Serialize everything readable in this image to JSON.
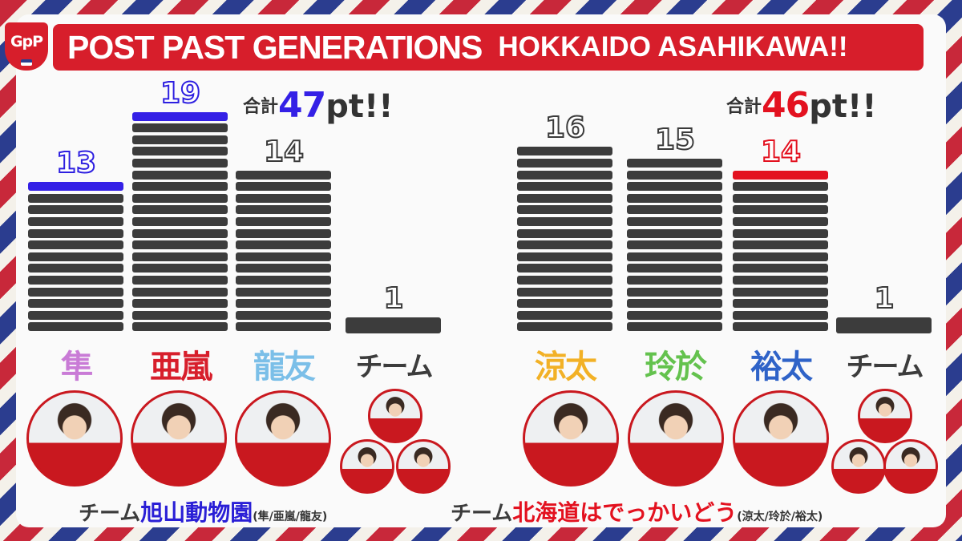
{
  "title": {
    "logo": "GpP",
    "main": "POST PAST GENERATIONS",
    "sub": "HOKKAIDO  ASAHIKAWA!!"
  },
  "colors": {
    "blue": "#3420e6",
    "red": "#e3111f",
    "dark": "#3c3c3c",
    "title_bg": "#d71e2b"
  },
  "totals": {
    "left": {
      "label": "合計",
      "value": "47",
      "unit": "pt!!"
    },
    "right": {
      "label": "合計",
      "value": "46",
      "unit": "pt!!"
    }
  },
  "chart_data": {
    "type": "bar",
    "categories": [
      "隼",
      "亜嵐",
      "龍友",
      "チーム",
      "涼太",
      "玲於",
      "裕太",
      "チーム"
    ],
    "values": [
      13,
      19,
      14,
      1,
      16,
      15,
      14,
      1
    ],
    "value_labels": [
      "13",
      "19",
      "14",
      "1",
      "16",
      "15",
      "14",
      "1"
    ],
    "category_colors": [
      "#c97bd6",
      "#d71e2b",
      "#7bbfe8",
      "#3c3c3c",
      "#f2b126",
      "#64c24e",
      "#2f63c8",
      "#3c3c3c"
    ],
    "highlight": [
      "blue",
      "blue",
      "none",
      "none",
      "none",
      "none",
      "red",
      "none"
    ],
    "groups": [
      {
        "team": "旭山動物園",
        "indices": [
          0,
          1,
          2,
          3
        ],
        "total": 47
      },
      {
        "team": "北海道はでっかいどう",
        "indices": [
          4,
          5,
          6,
          7
        ],
        "total": 46
      }
    ]
  },
  "teams": {
    "left": {
      "prefix": "チーム",
      "name": "旭山動物園",
      "members": "(隼/亜嵐/龍友)",
      "color": "#2a1fd6"
    },
    "right": {
      "prefix": "チーム",
      "name": "北海道はでっかいどう",
      "members": "(涼太/玲於/裕太)",
      "color": "#e3111f"
    }
  }
}
